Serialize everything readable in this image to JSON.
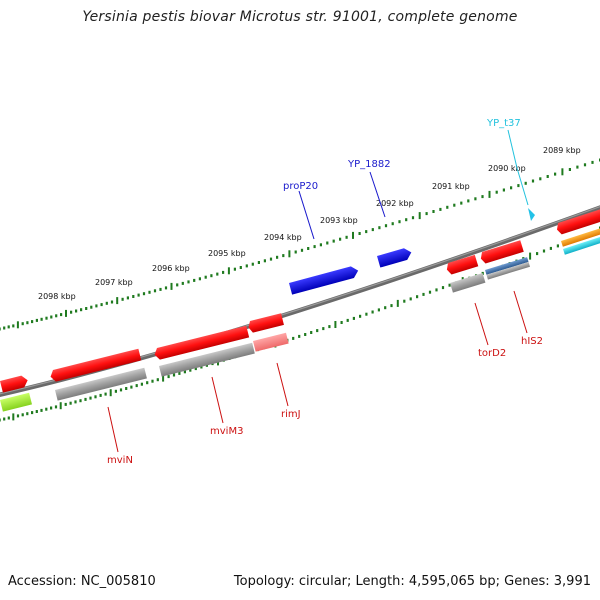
{
  "title": "Yersinia pestis biovar Microtus str. 91001, complete genome",
  "footer": {
    "accession": "Accession: NC_005810",
    "summary": "Topology: circular; Length: 4,595,065 bp; Genes: 3,991"
  },
  "colors": {
    "backbone": "#7a7a7a",
    "forward_cds": "#ff1a1a",
    "reverse_gray": "#a8a8a8",
    "light_red": "#ff8080",
    "blue_gene": "#0a0ae0",
    "steelblue": "#3c6ea8",
    "orange": "#ff9900",
    "cyan": "#1ecfe0",
    "lime": "#a6f03c",
    "tick_green": "#1f7a1f",
    "label_red": "#cc1111",
    "label_blue": "#1a1acc",
    "label_cyan": "#22c2dd"
  },
  "scale": {
    "unit": "kbp",
    "markers": [
      "2089 kbp",
      "2090 kbp",
      "2091 kbp",
      "2092 kbp",
      "2093 kbp",
      "2094 kbp",
      "2095 kbp",
      "2096 kbp",
      "2097 kbp",
      "2098 kbp"
    ]
  },
  "gene_labels": {
    "mviN": "mviN",
    "mviM3": "mviM3",
    "rimJ": "rimJ",
    "torD2": "torD2",
    "hIS2": "hIS2",
    "proP20": "proP20",
    "YP_1882": "YP_1882",
    "YP_t37": "YP_t37"
  }
}
